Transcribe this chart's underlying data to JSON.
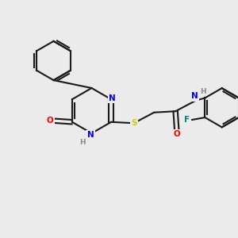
{
  "bg_color": "#ebebeb",
  "bond_color": "#1a1a1a",
  "bond_width": 1.5,
  "atom_colors": {
    "N": "#0000ff",
    "O": "#ff0000",
    "S": "#cccc00",
    "F": "#008080",
    "H": "#888888",
    "C": "#1a1a1a"
  },
  "font_size": 7.5,
  "title": ""
}
